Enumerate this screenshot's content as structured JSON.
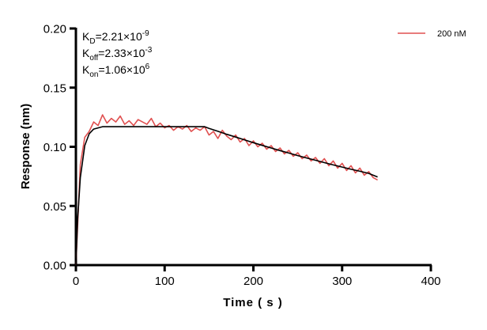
{
  "chart_data": {
    "type": "line",
    "title": "",
    "xlabel": "Time ( s )",
    "ylabel": "Response (nm)",
    "xlim": [
      0,
      400
    ],
    "ylim": [
      0,
      0.2
    ],
    "xticks": [
      "0",
      "100",
      "200",
      "300",
      "400"
    ],
    "yticks": [
      "0.00",
      "0.05",
      "0.10",
      "0.15",
      "0.20"
    ],
    "grid": false,
    "legend_position": "top-right",
    "annotations": [
      {
        "base": "K",
        "sub": "D",
        "text": "=2.21×10",
        "sup": "-9"
      },
      {
        "base": "K",
        "sub": "off",
        "text": "=2.33×10",
        "sup": "-3"
      },
      {
        "base": "K",
        "sub": "on",
        "text": "=1.06×10",
        "sup": "6"
      }
    ],
    "series": [
      {
        "name": "200 nM",
        "color": "#e05050",
        "x": [
          0,
          5,
          10,
          15,
          20,
          25,
          30,
          35,
          40,
          45,
          50,
          55,
          60,
          65,
          70,
          75,
          80,
          85,
          90,
          95,
          100,
          105,
          110,
          115,
          120,
          125,
          130,
          135,
          140,
          145,
          150,
          155,
          160,
          165,
          170,
          175,
          180,
          185,
          190,
          195,
          200,
          205,
          210,
          215,
          220,
          225,
          230,
          235,
          240,
          245,
          250,
          255,
          260,
          265,
          270,
          275,
          280,
          285,
          290,
          295,
          300,
          305,
          310,
          315,
          320,
          325,
          330,
          335,
          340
        ],
        "y": [
          0.0,
          0.085,
          0.108,
          0.113,
          0.121,
          0.118,
          0.127,
          0.12,
          0.124,
          0.121,
          0.126,
          0.119,
          0.122,
          0.118,
          0.123,
          0.121,
          0.119,
          0.124,
          0.117,
          0.12,
          0.116,
          0.118,
          0.114,
          0.117,
          0.115,
          0.118,
          0.113,
          0.116,
          0.114,
          0.117,
          0.11,
          0.113,
          0.107,
          0.114,
          0.109,
          0.106,
          0.11,
          0.104,
          0.107,
          0.101,
          0.105,
          0.1,
          0.103,
          0.098,
          0.101,
          0.096,
          0.099,
          0.094,
          0.097,
          0.092,
          0.095,
          0.09,
          0.093,
          0.088,
          0.091,
          0.086,
          0.09,
          0.084,
          0.088,
          0.082,
          0.086,
          0.08,
          0.084,
          0.078,
          0.082,
          0.076,
          0.079,
          0.074,
          0.072
        ]
      },
      {
        "role": "fit",
        "color": "#000000",
        "x": [
          0,
          2,
          5,
          10,
          15,
          20,
          25,
          30,
          60,
          100,
          145,
          150,
          160,
          170,
          180,
          190,
          200,
          210,
          220,
          230,
          240,
          250,
          260,
          270,
          280,
          290,
          300,
          310,
          320,
          330,
          340
        ],
        "y": [
          0,
          0.039,
          0.074,
          0.101,
          0.111,
          0.115,
          0.116,
          0.117,
          0.117,
          0.117,
          0.117,
          0.1156,
          0.1131,
          0.1106,
          0.1082,
          0.1058,
          0.1035,
          0.1012,
          0.099,
          0.0968,
          0.0947,
          0.0926,
          0.0906,
          0.0886,
          0.0866,
          0.0847,
          0.0829,
          0.081,
          0.0793,
          0.0775,
          0.0745
        ]
      }
    ]
  }
}
